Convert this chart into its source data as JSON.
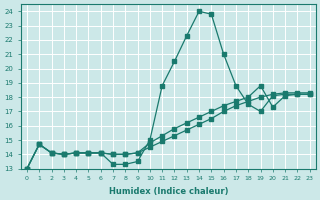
{
  "xlabel": "Humidex (Indice chaleur)",
  "bg_color": "#cce8e8",
  "grid_color": "#b8d8d8",
  "line_color": "#1a7a6e",
  "xlim": [
    -0.5,
    23.5
  ],
  "ylim": [
    13,
    24.5
  ],
  "yticks": [
    13,
    14,
    15,
    16,
    17,
    18,
    19,
    20,
    21,
    22,
    23,
    24
  ],
  "xticks": [
    0,
    1,
    2,
    3,
    4,
    5,
    6,
    7,
    8,
    9,
    10,
    11,
    12,
    13,
    14,
    15,
    16,
    17,
    18,
    19,
    20,
    21,
    22,
    23
  ],
  "line1_x": [
    0,
    1,
    2,
    3,
    4,
    5,
    6,
    7,
    8,
    9,
    10,
    11,
    12,
    13,
    14,
    15,
    16,
    17,
    18,
    19,
    20,
    21,
    22,
    23
  ],
  "line1_y": [
    13,
    14.7,
    14.1,
    14.0,
    14.1,
    14.1,
    14.1,
    13.3,
    13.3,
    13.5,
    15.0,
    18.8,
    20.5,
    22.3,
    24.0,
    23.8,
    21.0,
    18.8,
    17.5,
    17.0,
    18.1,
    18.2,
    18.2,
    18.2
  ],
  "line2_x": [
    0,
    1,
    2,
    3,
    4,
    5,
    6,
    7,
    8,
    9,
    10,
    11,
    12,
    13,
    14,
    15,
    16,
    17,
    18,
    19,
    20,
    21,
    22,
    23
  ],
  "line2_y": [
    13,
    14.7,
    14.1,
    14.0,
    14.1,
    14.1,
    14.1,
    14.0,
    14.0,
    14.1,
    14.8,
    15.3,
    15.8,
    16.2,
    16.6,
    17.0,
    17.4,
    17.7,
    18.0,
    18.8,
    17.3,
    18.1,
    18.2,
    18.2
  ],
  "line3_x": [
    0,
    1,
    2,
    3,
    4,
    5,
    6,
    7,
    8,
    9,
    10,
    11,
    12,
    13,
    14,
    15,
    16,
    17,
    18,
    19,
    20,
    21,
    22,
    23
  ],
  "line3_y": [
    13,
    14.7,
    14.1,
    14.0,
    14.1,
    14.1,
    14.1,
    14.0,
    14.0,
    14.1,
    14.5,
    14.9,
    15.3,
    15.7,
    16.1,
    16.5,
    17.0,
    17.4,
    17.7,
    18.0,
    18.2,
    18.3,
    18.3,
    18.3
  ]
}
